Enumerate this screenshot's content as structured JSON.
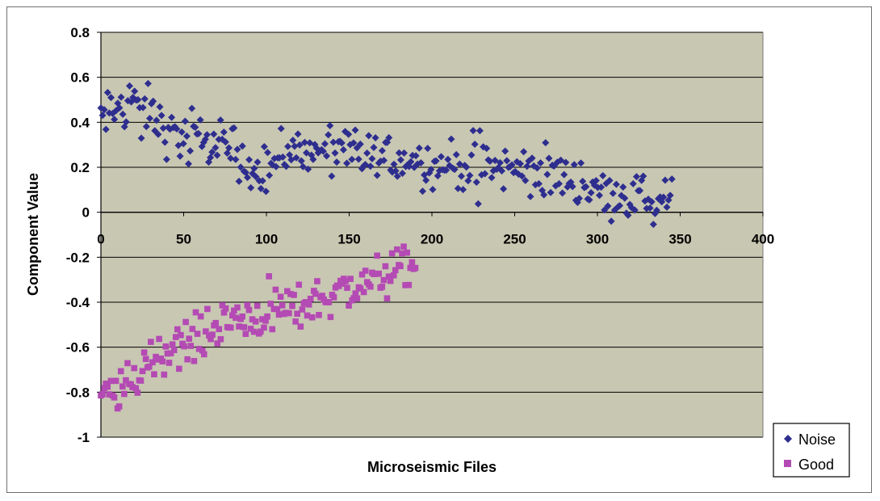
{
  "chart_data": {
    "type": "scatter",
    "title": "",
    "xlabel": "Microseismic Files",
    "ylabel": "Component Value",
    "xlim": [
      0,
      400
    ],
    "ylim": [
      -1,
      0.8
    ],
    "x_ticks": [
      "0",
      "50",
      "100",
      "150",
      "200",
      "250",
      "300",
      "350",
      "400"
    ],
    "y_ticks": [
      "0.8",
      "0.6",
      "0.4",
      "0.2",
      "0",
      "-0.2",
      "-0.4",
      "-0.6",
      "-0.8",
      "-1"
    ],
    "grid": "horizontal",
    "legend_position": "bottom-right",
    "plot_background": "#c8c7b2",
    "series": [
      {
        "name": "Noise",
        "marker": "diamond",
        "color": "#2e2e8f",
        "x_range": [
          0,
          345
        ],
        "trend": [
          [
            0,
            0.4
          ],
          [
            15,
            0.5
          ],
          [
            30,
            0.45
          ],
          [
            40,
            0.35
          ],
          [
            60,
            0.32
          ],
          [
            80,
            0.28
          ],
          [
            85,
            0.2
          ],
          [
            100,
            0.2
          ],
          [
            120,
            0.27
          ],
          [
            150,
            0.26
          ],
          [
            180,
            0.24
          ],
          [
            200,
            0.22
          ],
          [
            250,
            0.19
          ],
          [
            280,
            0.16
          ],
          [
            300,
            0.1
          ],
          [
            320,
            0.07
          ],
          [
            345,
            0.05
          ]
        ],
        "count": 340
      },
      {
        "name": "Good",
        "marker": "square",
        "color": "#b44ab4",
        "x_range": [
          0,
          190
        ],
        "trend": [
          [
            0,
            -0.82
          ],
          [
            10,
            -0.8
          ],
          [
            20,
            -0.75
          ],
          [
            30,
            -0.65
          ],
          [
            45,
            -0.6
          ],
          [
            60,
            -0.55
          ],
          [
            80,
            -0.48
          ],
          [
            100,
            -0.44
          ],
          [
            120,
            -0.42
          ],
          [
            140,
            -0.36
          ],
          [
            160,
            -0.32
          ],
          [
            175,
            -0.27
          ],
          [
            190,
            -0.24
          ]
        ],
        "count": 190
      }
    ]
  }
}
